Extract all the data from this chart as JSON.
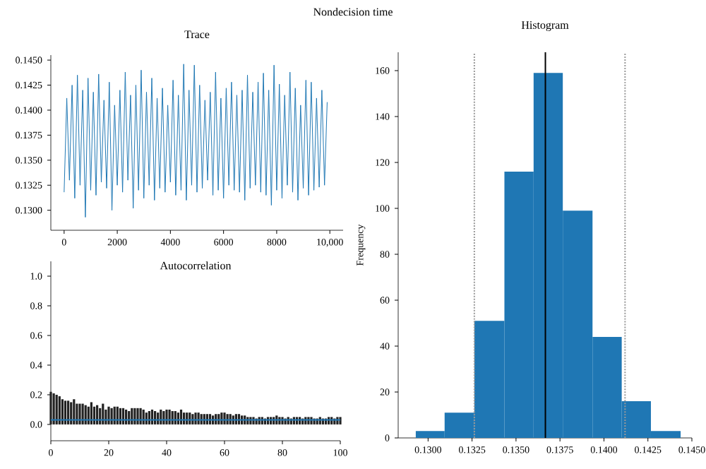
{
  "chart_data": [
    {
      "type": "line",
      "title": "Trace",
      "annotations": [
        "Nondecision time"
      ],
      "x": [
        0,
        100,
        200,
        300,
        400,
        500,
        600,
        700,
        800,
        900,
        1000,
        1100,
        1200,
        1300,
        1400,
        1500,
        1600,
        1700,
        1800,
        1900,
        2000,
        2100,
        2200,
        2300,
        2400,
        2500,
        2600,
        2700,
        2800,
        2900,
        3000,
        3100,
        3200,
        3300,
        3400,
        3500,
        3600,
        3700,
        3800,
        3900,
        4000,
        4100,
        4200,
        4300,
        4400,
        4500,
        4600,
        4700,
        4800,
        4900,
        5000,
        5100,
        5200,
        5300,
        5400,
        5500,
        5600,
        5700,
        5800,
        5900,
        6000,
        6100,
        6200,
        6300,
        6400,
        6500,
        6600,
        6700,
        6800,
        6900,
        7000,
        7100,
        7200,
        7300,
        7400,
        7500,
        7600,
        7700,
        7800,
        7900,
        8000,
        8100,
        8200,
        8300,
        8400,
        8500,
        8600,
        8700,
        8800,
        8900,
        9000,
        9100,
        9200,
        9300,
        9400,
        9500,
        9600,
        9700,
        9800,
        9900
      ],
      "series": [
        {
          "color": "#1f77b4",
          "values": [
            0.1318,
            0.1412,
            0.133,
            0.1425,
            0.1312,
            0.1435,
            0.1325,
            0.142,
            0.1293,
            0.1432,
            0.132,
            0.1418,
            0.1315,
            0.1436,
            0.1328,
            0.141,
            0.1322,
            0.1428,
            0.13,
            0.1405,
            0.1325,
            0.142,
            0.1318,
            0.1438,
            0.133,
            0.1415,
            0.1302,
            0.1425,
            0.132,
            0.144,
            0.1312,
            0.1418,
            0.1325,
            0.1432,
            0.131,
            0.1412,
            0.1322,
            0.1422,
            0.1318,
            0.1405,
            0.1328,
            0.143,
            0.1315,
            0.1415,
            0.132,
            0.1446,
            0.131,
            0.142,
            0.1325,
            0.1445,
            0.1318,
            0.1425,
            0.1322,
            0.141,
            0.133,
            0.1418,
            0.1315,
            0.1438,
            0.132,
            0.1412,
            0.1312,
            0.1422,
            0.1325,
            0.1428,
            0.132,
            0.1415,
            0.1318,
            0.142,
            0.131,
            0.1435,
            0.1322,
            0.1418,
            0.1325,
            0.1428,
            0.1318,
            0.1437,
            0.1315,
            0.142,
            0.1305,
            0.1445,
            0.132,
            0.1426,
            0.1312,
            0.1415,
            0.1325,
            0.1438,
            0.1318,
            0.1422,
            0.131,
            0.1405,
            0.1322,
            0.143,
            0.1315,
            0.1428,
            0.132,
            0.1412,
            0.1323,
            0.142,
            0.1325,
            0.1408
          ]
        }
      ],
      "xlim": [
        -500,
        10500
      ],
      "ylim": [
        0.128,
        0.1455
      ],
      "xticks": [
        0,
        2000,
        4000,
        6000,
        8000,
        {
          "value": 10000,
          "label": "10,000"
        }
      ],
      "yticks": [
        {
          "value": 0.13,
          "label": "0.1300"
        },
        {
          "value": 0.1325,
          "label": "0.1325"
        },
        {
          "value": 0.135,
          "label": "0.1350"
        },
        {
          "value": 0.1375,
          "label": "0.1375"
        },
        {
          "value": 0.14,
          "label": "0.1400"
        },
        {
          "value": 0.1425,
          "label": "0.1425"
        },
        {
          "value": 0.145,
          "label": "0.1450"
        }
      ]
    },
    {
      "type": "bar",
      "title": "Autocorrelation",
      "x": [
        0,
        1,
        2,
        3,
        4,
        5,
        6,
        7,
        8,
        9,
        10,
        11,
        12,
        13,
        14,
        15,
        16,
        17,
        18,
        19,
        20,
        21,
        22,
        23,
        24,
        25,
        26,
        27,
        28,
        29,
        30,
        31,
        32,
        33,
        34,
        35,
        36,
        37,
        38,
        39,
        40,
        41,
        42,
        43,
        44,
        45,
        46,
        47,
        48,
        49,
        50,
        51,
        52,
        53,
        54,
        55,
        56,
        57,
        58,
        59,
        60,
        61,
        62,
        63,
        64,
        65,
        66,
        67,
        68,
        69,
        70,
        71,
        72,
        73,
        74,
        75,
        76,
        77,
        78,
        79,
        80,
        81,
        82,
        83,
        84,
        85,
        86,
        87,
        88,
        89,
        90,
        91,
        92,
        93,
        94,
        95,
        96,
        97,
        98,
        99,
        100
      ],
      "series": [
        {
          "color": "#222222",
          "values": [
            0.22,
            0.21,
            0.2,
            0.19,
            0.17,
            0.16,
            0.16,
            0.15,
            0.17,
            0.14,
            0.14,
            0.14,
            0.13,
            0.12,
            0.15,
            0.12,
            0.13,
            0.11,
            0.14,
            0.1,
            0.12,
            0.11,
            0.12,
            0.12,
            0.11,
            0.11,
            0.1,
            0.09,
            0.11,
            0.11,
            0.11,
            0.11,
            0.1,
            0.08,
            0.09,
            0.1,
            0.09,
            0.08,
            0.1,
            0.09,
            0.1,
            0.1,
            0.09,
            0.09,
            0.08,
            0.1,
            0.08,
            0.08,
            0.08,
            0.07,
            0.08,
            0.08,
            0.07,
            0.07,
            0.07,
            0.07,
            0.06,
            0.07,
            0.07,
            0.08,
            0.08,
            0.07,
            0.07,
            0.06,
            0.07,
            0.07,
            0.06,
            0.06,
            0.05,
            0.05,
            0.05,
            0.04,
            0.05,
            0.05,
            0.04,
            0.05,
            0.05,
            0.05,
            0.06,
            0.05,
            0.05,
            0.04,
            0.05,
            0.04,
            0.05,
            0.05,
            0.05,
            0.04,
            0.05,
            0.05,
            0.05,
            0.04,
            0.04,
            0.05,
            0.04,
            0.04,
            0.05,
            0.05,
            0.04,
            0.05,
            0.05
          ]
        }
      ],
      "ref_lines": [
        {
          "axis": "y",
          "value": 0.03,
          "color": "#1f77b4"
        }
      ],
      "xlim": [
        0,
        100
      ],
      "ylim": [
        -0.11,
        1.1
      ],
      "xticks": [
        0,
        20,
        40,
        60,
        80,
        100
      ],
      "yticks": [
        {
          "value": 0,
          "label": "0.0"
        },
        0.2,
        0.4,
        0.6,
        0.8,
        {
          "value": 1,
          "label": "1.0"
        }
      ]
    },
    {
      "type": "histogram",
      "title": "Histogram",
      "ylabel": "Frequency",
      "color": "#1f77b4",
      "bins": [
        0.1293,
        0.13094,
        0.13263,
        0.13434,
        0.136,
        0.13766,
        0.13935,
        0.14101,
        0.14267,
        0.14436
      ],
      "values": [
        3,
        11,
        51,
        116,
        159,
        99,
        44,
        16,
        3
      ],
      "ref_lines": [
        {
          "axis": "x",
          "value": 0.13667,
          "color": "#000000",
          "line_style": "solid"
        },
        {
          "axis": "x",
          "value": 0.13263,
          "color": "#999999",
          "line_style": "dotted"
        },
        {
          "axis": "x",
          "value": 0.1412,
          "color": "#999999",
          "line_style": "dotted"
        }
      ],
      "xlim": [
        0.1283,
        0.145
      ],
      "ylim": [
        0,
        168
      ],
      "xticks": [
        {
          "value": 0.13,
          "label": "0.1300"
        },
        {
          "value": 0.1325,
          "label": "0.1325"
        },
        {
          "value": 0.135,
          "label": "0.1350"
        },
        {
          "value": 0.1375,
          "label": "0.1375"
        },
        {
          "value": 0.14,
          "label": "0.1400"
        },
        {
          "value": 0.1425,
          "label": "0.1425"
        },
        {
          "value": 0.145,
          "label": "0.1450"
        }
      ],
      "yticks": [
        0,
        20,
        40,
        60,
        80,
        100,
        120,
        140,
        160
      ]
    }
  ]
}
